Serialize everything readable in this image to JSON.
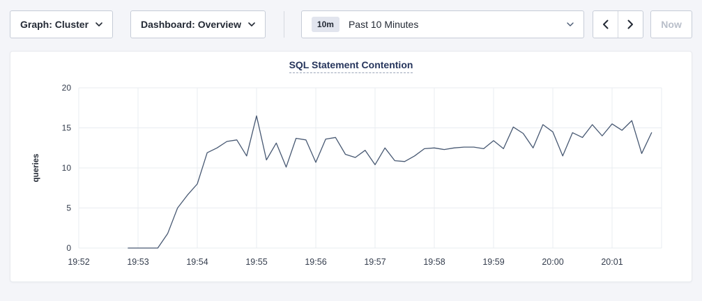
{
  "toolbar": {
    "graph_label": "Graph: Cluster",
    "dashboard_label": "Dashboard: Overview",
    "time_range": {
      "badge": "10m",
      "label": "Past 10 Minutes"
    },
    "now_label": "Now"
  },
  "chart_data": {
    "type": "line",
    "title": "SQL Statement Contention",
    "ylabel": "queries",
    "ylim": [
      0,
      20
    ],
    "yticks": [
      0,
      5,
      10,
      15,
      20
    ],
    "xticks": [
      "19:52",
      "19:53",
      "19:54",
      "19:55",
      "19:56",
      "19:57",
      "19:58",
      "19:59",
      "20:00",
      "20:01"
    ],
    "grid": true,
    "legend": "none",
    "colors": {
      "line": "#475872",
      "grid": "#e9ecf1",
      "tick_text": "#333c4c",
      "title": "#26355c"
    },
    "series": [
      {
        "name": "SQL Statement Contention",
        "x": [
          "19:52:50",
          "19:53:00",
          "19:53:10",
          "19:53:20",
          "19:53:30",
          "19:53:40",
          "19:53:50",
          "19:54:00",
          "19:54:10",
          "19:54:20",
          "19:54:30",
          "19:54:40",
          "19:54:50",
          "19:55:00",
          "19:55:10",
          "19:55:20",
          "19:55:30",
          "19:55:40",
          "19:55:50",
          "19:56:00",
          "19:56:10",
          "19:56:20",
          "19:56:30",
          "19:56:40",
          "19:56:50",
          "19:57:00",
          "19:57:10",
          "19:57:20",
          "19:57:30",
          "19:57:40",
          "19:57:50",
          "19:58:00",
          "19:58:10",
          "19:58:20",
          "19:58:30",
          "19:58:40",
          "19:58:50",
          "19:59:00",
          "19:59:10",
          "19:59:20",
          "19:59:30",
          "19:59:40",
          "19:59:50",
          "20:00:00",
          "20:00:10",
          "20:00:20",
          "20:00:30",
          "20:00:40",
          "20:00:50",
          "20:01:00",
          "20:01:10",
          "20:01:20",
          "20:01:30",
          "20:01:40"
        ],
        "values": [
          0,
          0,
          0,
          0,
          1.8,
          5,
          6.6,
          8,
          11.9,
          12.5,
          13.3,
          13.5,
          11.5,
          16.5,
          11,
          13.1,
          10.1,
          13.7,
          13.5,
          10.7,
          13.6,
          13.8,
          11.7,
          11.3,
          12.2,
          10.4,
          12.5,
          10.9,
          10.8,
          11.5,
          12.4,
          12.5,
          12.3,
          12.5,
          12.6,
          12.6,
          12.4,
          13.4,
          12.4,
          15.1,
          14.3,
          12.5,
          15.4,
          14.5,
          11.5,
          14.4,
          13.8,
          15.4,
          14,
          15.5,
          14.7,
          15.9,
          11.8,
          14.4
        ]
      }
    ]
  }
}
